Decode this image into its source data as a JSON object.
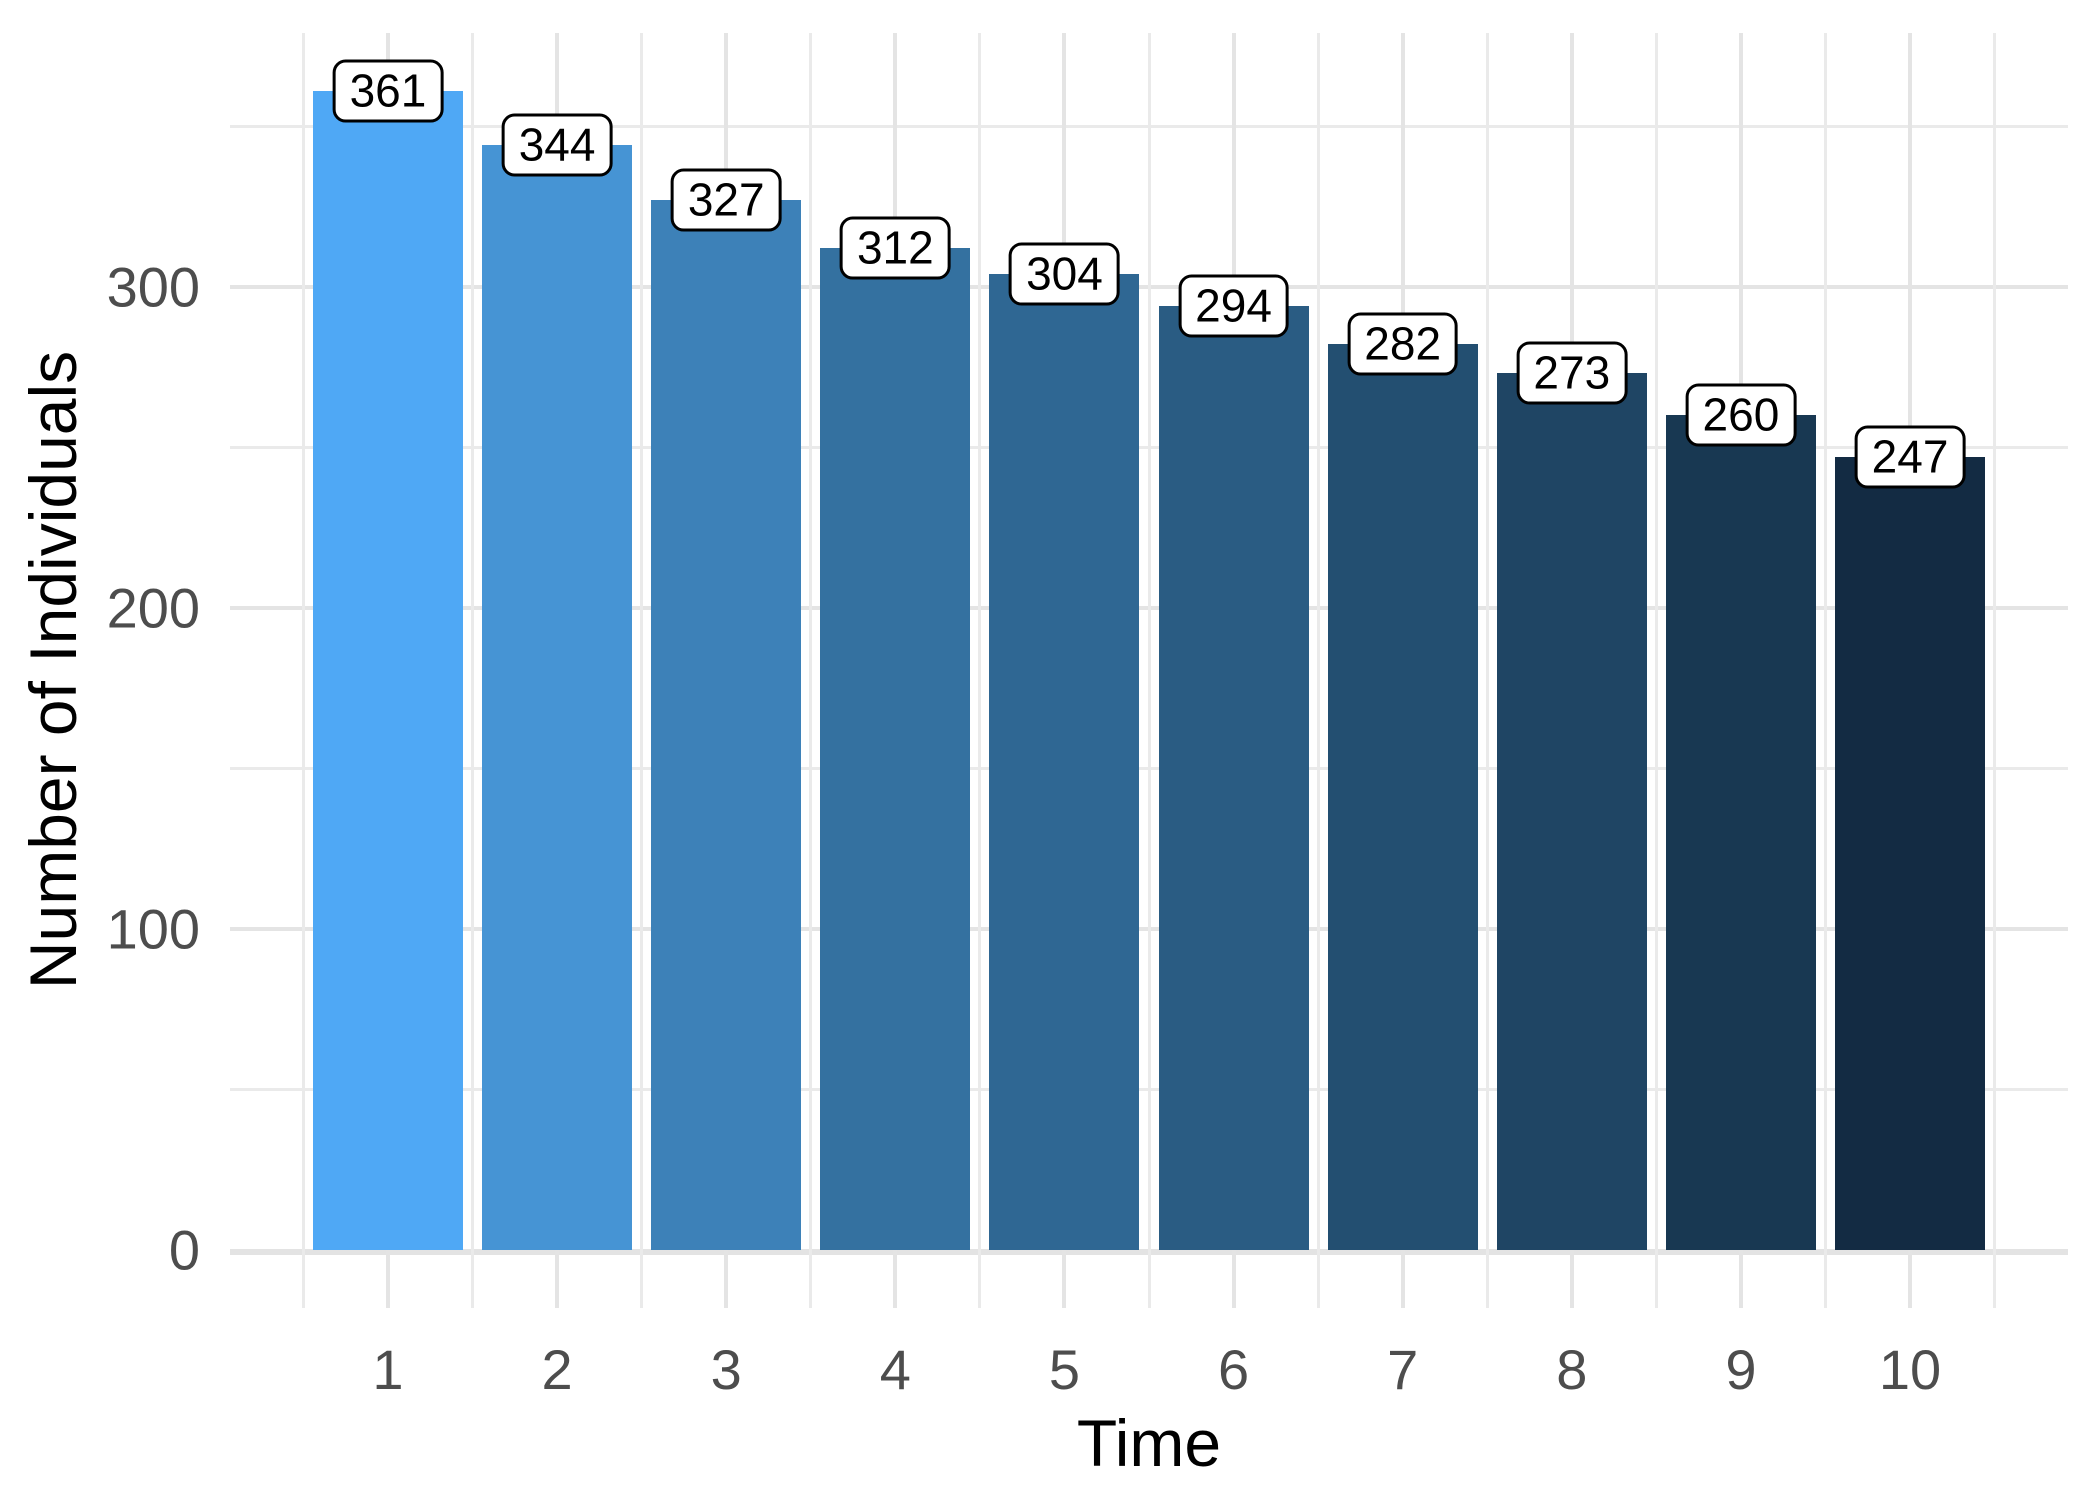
{
  "chart_data": {
    "type": "bar",
    "title": "",
    "xlabel": "Time",
    "ylabel": "Number of Individuals",
    "categories": [
      "1",
      "2",
      "3",
      "4",
      "5",
      "6",
      "7",
      "8",
      "9",
      "10"
    ],
    "values": [
      361,
      344,
      327,
      312,
      304,
      294,
      282,
      273,
      260,
      247
    ],
    "bar_value_labels": [
      "361",
      "344",
      "327",
      "312",
      "304",
      "294",
      "282",
      "273",
      "260",
      "247"
    ],
    "bar_colors": [
      "#4FA8F5",
      "#4694D4",
      "#3D81B8",
      "#3471A0",
      "#2F6793",
      "#2A5C83",
      "#234F71",
      "#1F4564",
      "#183852",
      "#132B43"
    ],
    "y_axis": {
      "tick_values": [
        0,
        100,
        200,
        300
      ],
      "tick_labels": [
        "0",
        "100",
        "200",
        "300"
      ],
      "minor_tick_values": [
        50,
        150,
        250,
        350
      ],
      "range": [
        0,
        379
      ]
    },
    "x_axis": {
      "tick_labels": [
        "1",
        "2",
        "3",
        "4",
        "5",
        "6",
        "7",
        "8",
        "9",
        "10"
      ]
    },
    "legend": "none",
    "grid": "major and minor, horizontal and vertical",
    "colors": {
      "background": "#FFFFFF",
      "grid_major": "#E4E4E4",
      "grid_minor": "#EAEAEA",
      "zero_line": "#E3E3E3",
      "tick_label_color": "#4D4D4D",
      "axis_title_color": "#000000",
      "value_label_bg": "#FFFFFF",
      "value_label_border": "#000000",
      "value_label_text": "#000000"
    }
  }
}
